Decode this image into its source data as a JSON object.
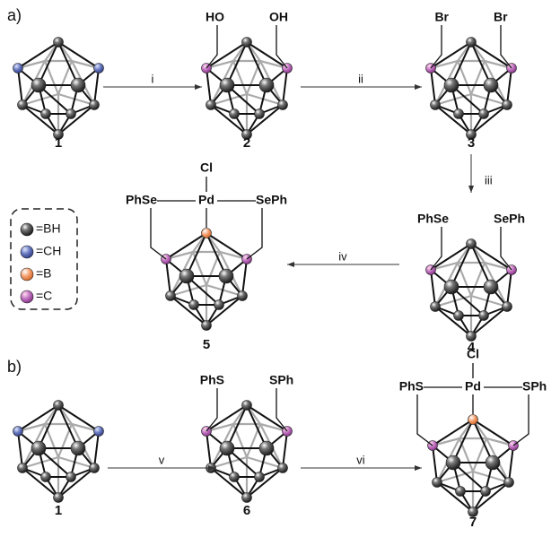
{
  "schemes": [
    {
      "label": "a)",
      "compounds": [
        {
          "number": "1"
        },
        {
          "number": "2",
          "left": "HO",
          "right": "OH"
        },
        {
          "number": "3",
          "left": "Br",
          "right": "Br"
        },
        {
          "number": "4",
          "left": "PhSe",
          "right": "SePh"
        },
        {
          "number": "5",
          "left": "PhSe",
          "right": "SePh",
          "metal": "Pd",
          "halide": "Cl"
        }
      ],
      "reagents": [
        "i",
        "ii",
        "iii",
        "iv"
      ]
    },
    {
      "label": "b)",
      "compounds": [
        {
          "number": "1"
        },
        {
          "number": "6",
          "left": "PhS",
          "right": "SPh"
        },
        {
          "number": "7",
          "left": "PhS",
          "right": "SPh",
          "metal": "Pd",
          "halide": "Cl"
        }
      ],
      "reagents": [
        "v",
        "vi"
      ]
    }
  ],
  "legend": [
    "=BH",
    "=CH",
    "=B",
    "=C"
  ]
}
